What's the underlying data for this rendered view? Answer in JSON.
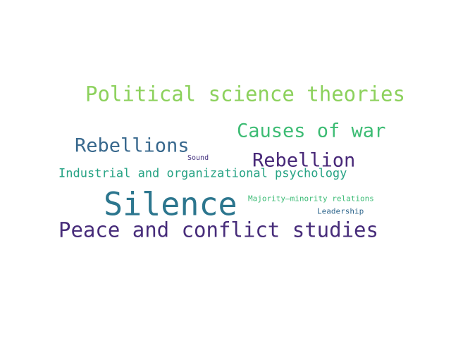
{
  "words": [
    {
      "text": "Political science theories",
      "color": "#8cd15c"
    },
    {
      "text": "Causes of war",
      "color": "#3dbc74"
    },
    {
      "text": "Rebellions",
      "color": "#38688d"
    },
    {
      "text": "Sound",
      "color": "#463480"
    },
    {
      "text": "Rebellion",
      "color": "#482878"
    },
    {
      "text": "Industrial and organizational psychology",
      "color": "#26a384"
    },
    {
      "text": "Silence",
      "color": "#2c768e"
    },
    {
      "text": "Majority–minority relations",
      "color": "#3bbb75"
    },
    {
      "text": "Leadership",
      "color": "#31688e"
    },
    {
      "text": "Peace and conflict studies",
      "color": "#472c7a"
    }
  ]
}
